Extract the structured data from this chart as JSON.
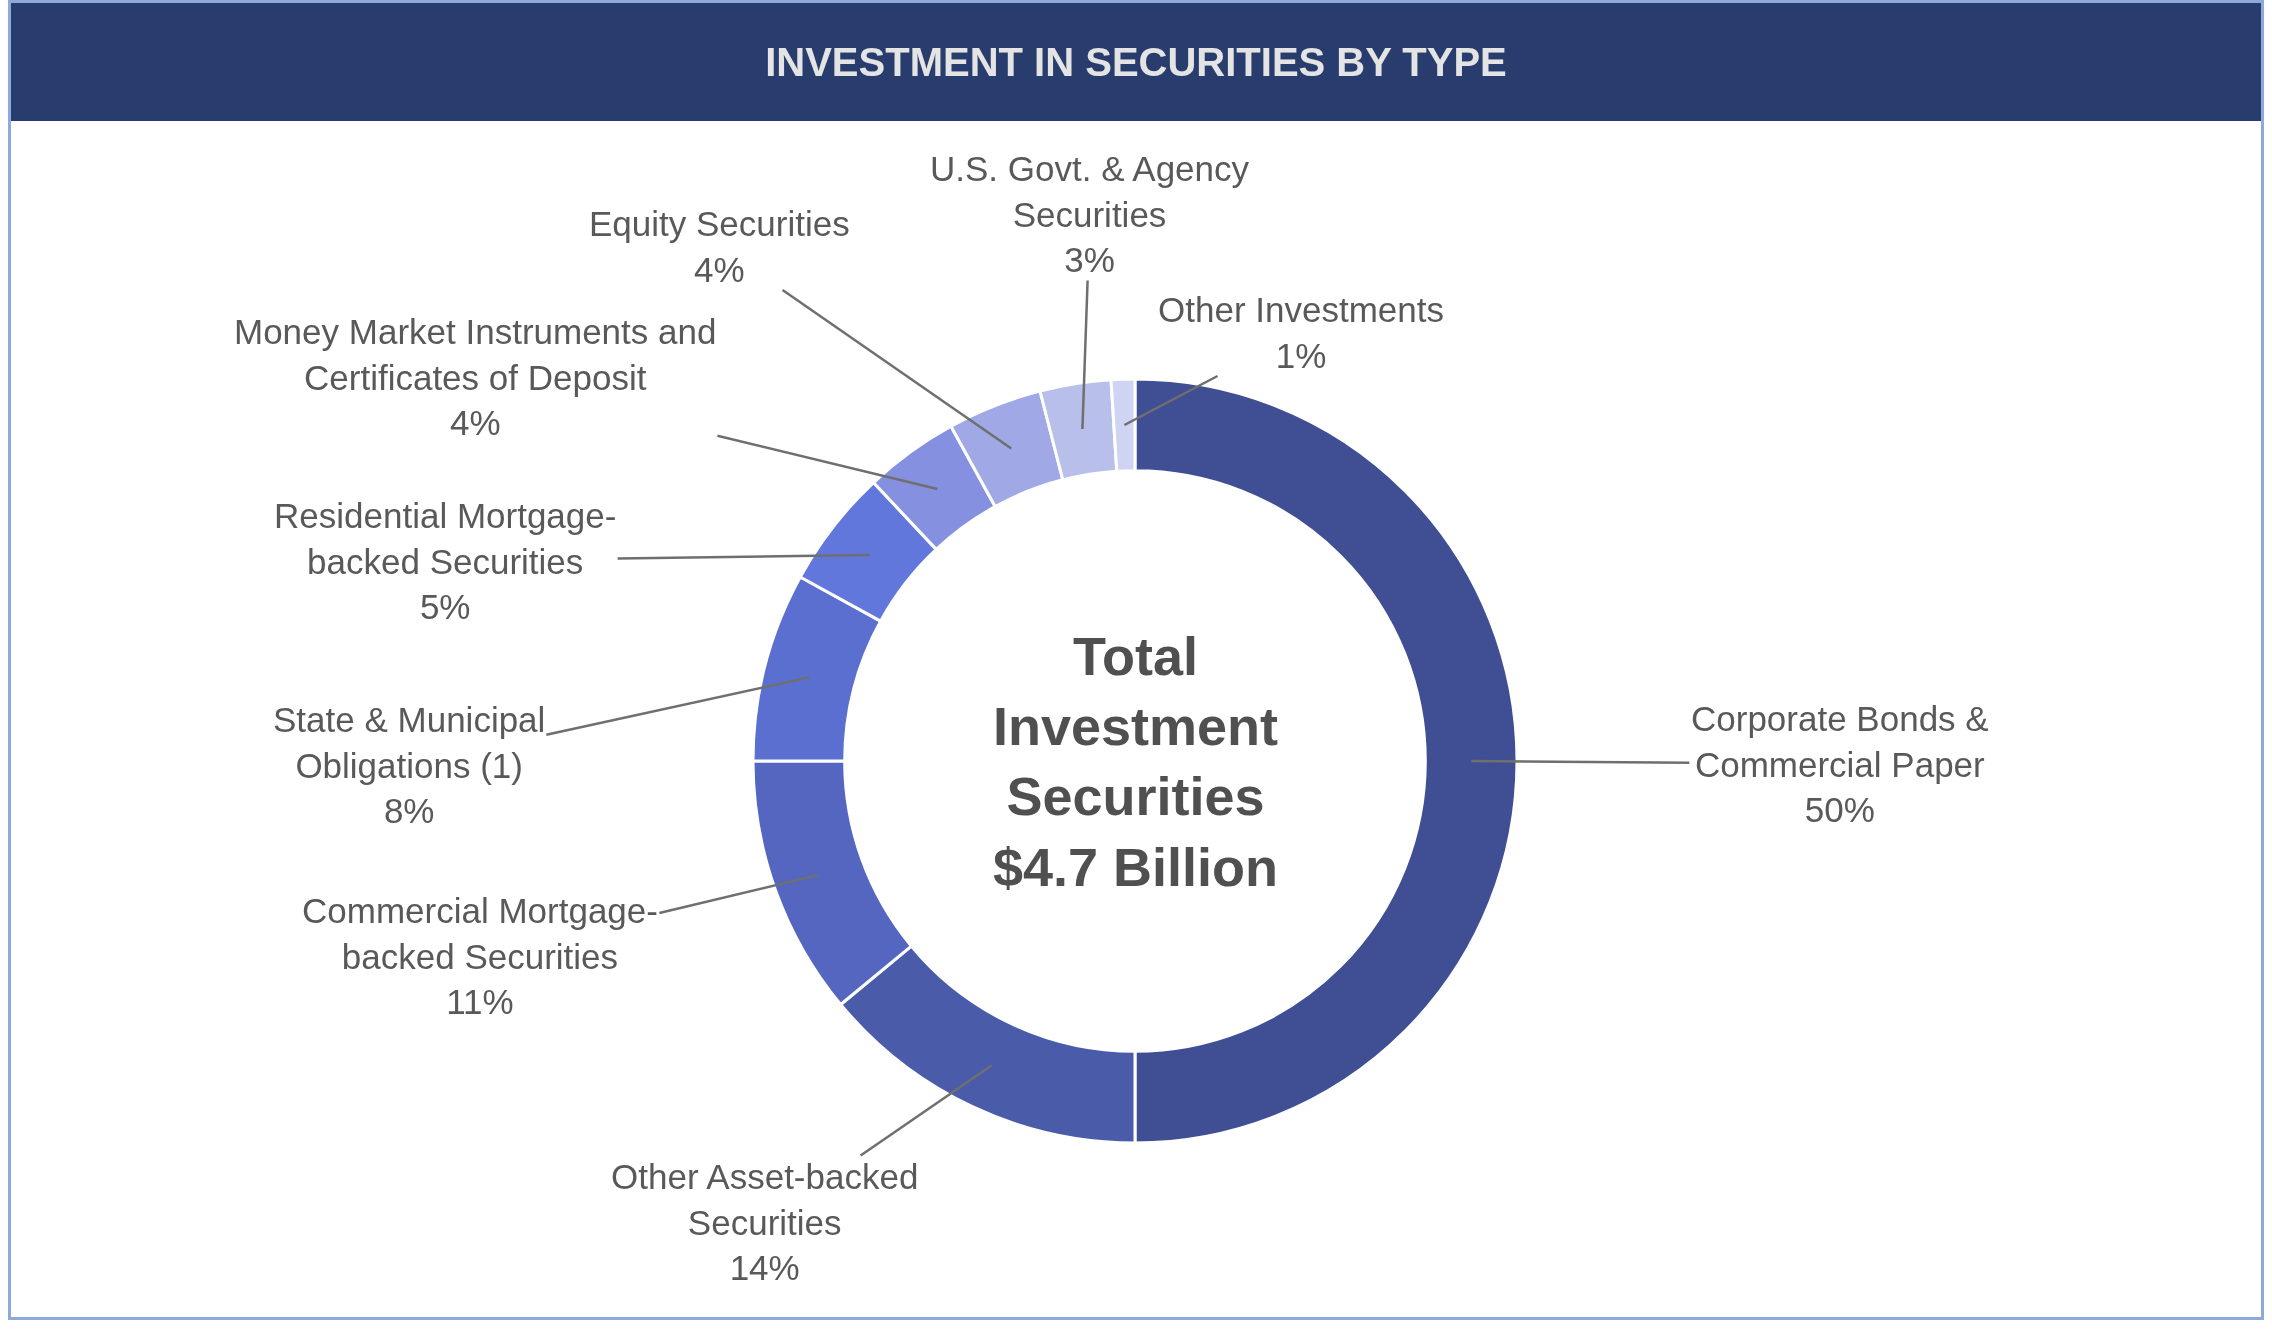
{
  "chart_data": {
    "type": "donut",
    "title": "INVESTMENT IN SECURITIES BY TYPE",
    "categories": [
      "Corporate Bonds & Commercial Paper",
      "Other Asset-backed Securities",
      "Commercial Mortgage-backed Securities",
      "State & Municipal Obligations (1)",
      "Residential Mortgage-backed Securities",
      "Money Market Instruments and Certificates of Deposit",
      "Equity Securities",
      "U.S. Govt. & Agency Securities",
      "Other Investments"
    ],
    "values": [
      50,
      14,
      11,
      8,
      5,
      4,
      4,
      3,
      1
    ],
    "colors": [
      "#404f94",
      "#4a5baa",
      "#5566c0",
      "#5b6fd0",
      "#6277dc",
      "#8591e0",
      "#a0a9e6",
      "#b8bfeb",
      "#cfd4f3"
    ],
    "value_labels": [
      "50%",
      "14%",
      "11%",
      "8%",
      "5%",
      "4%",
      "4%",
      "3%",
      "1%"
    ],
    "annotations": [
      "Total Investment Securities $4.7 Billion"
    ],
    "legend": false
  }
}
